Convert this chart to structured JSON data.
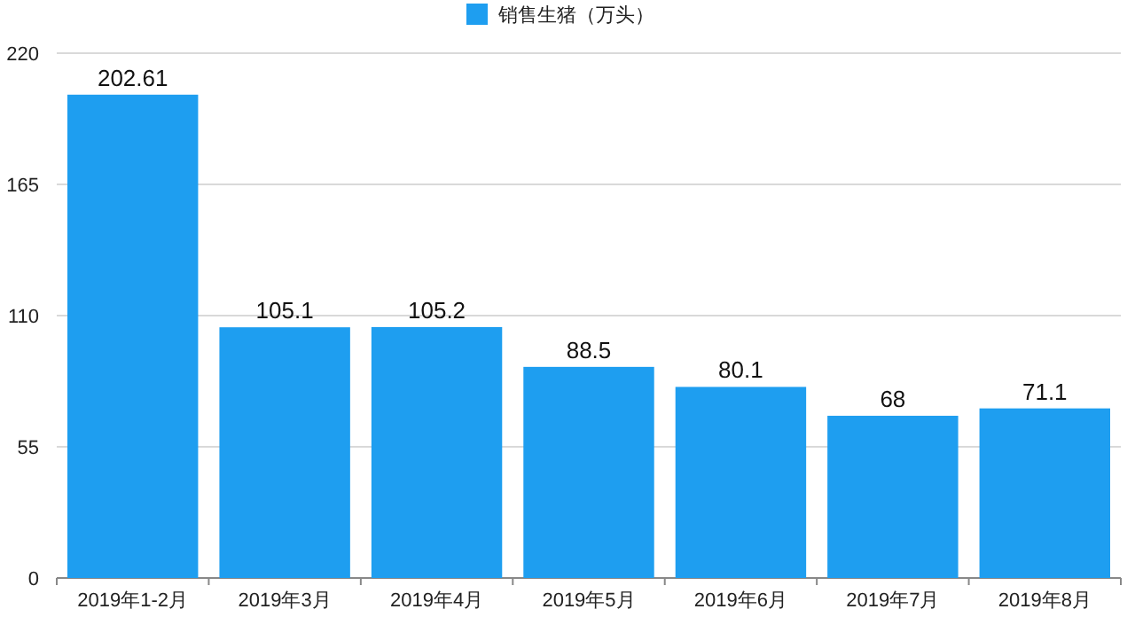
{
  "chart_data": {
    "type": "bar",
    "categories": [
      "2019年1-2月",
      "2019年3月",
      "2019年4月",
      "2019年5月",
      "2019年6月",
      "2019年7月",
      "2019年8月"
    ],
    "series": [
      {
        "name": "销售生猪（万头）",
        "color": "#1e9ef0",
        "values": [
          202.61,
          105.1,
          105.2,
          88.5,
          80.1,
          68,
          71.1
        ]
      }
    ],
    "ylim": [
      0,
      220
    ],
    "yticks": [
      0,
      55,
      110,
      165,
      220
    ],
    "grid": "y",
    "legend": "top",
    "data_labels": true
  }
}
